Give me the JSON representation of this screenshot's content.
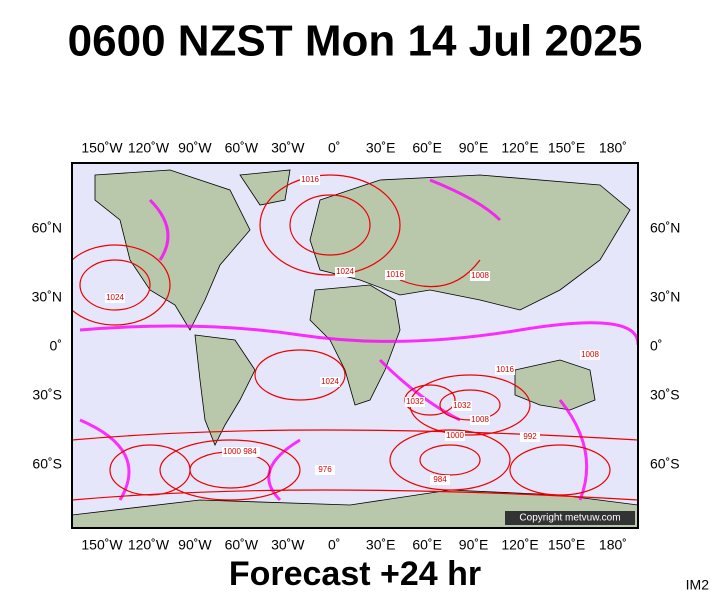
{
  "header": {
    "title": "0600 NZST Mon 14 Jul 2025"
  },
  "map": {
    "top_labels": [
      "150˚W",
      "120˚W",
      "90˚W",
      "60˚W",
      "30˚W",
      "0˚",
      "30˚E",
      "60˚E",
      "90˚E",
      "120˚E",
      "150˚E",
      "180˚"
    ],
    "bottom_labels": [
      "150˚W",
      "120˚W",
      "90˚W",
      "60˚W",
      "30˚W",
      "0˚",
      "30˚E",
      "60˚E",
      "90˚E",
      "120˚E",
      "150˚E",
      "180˚"
    ],
    "left_labels": [
      "60˚N",
      "30˚N",
      "0˚",
      "30˚S",
      "60˚S"
    ],
    "right_labels": [
      "60˚N",
      "30˚N",
      "0˚",
      "30˚S",
      "60˚S"
    ],
    "isobar_labels": [
      "1024",
      "1016",
      "1024",
      "1016",
      "1008",
      "1032",
      "1032",
      "1024",
      "1016",
      "1008",
      "1000",
      "992",
      "984",
      "976",
      "1000",
      "984",
      "1008"
    ],
    "copyright": "Copyright metvuw.com"
  },
  "footer": {
    "caption": "Forecast +24 hr",
    "code": "IM2"
  }
}
